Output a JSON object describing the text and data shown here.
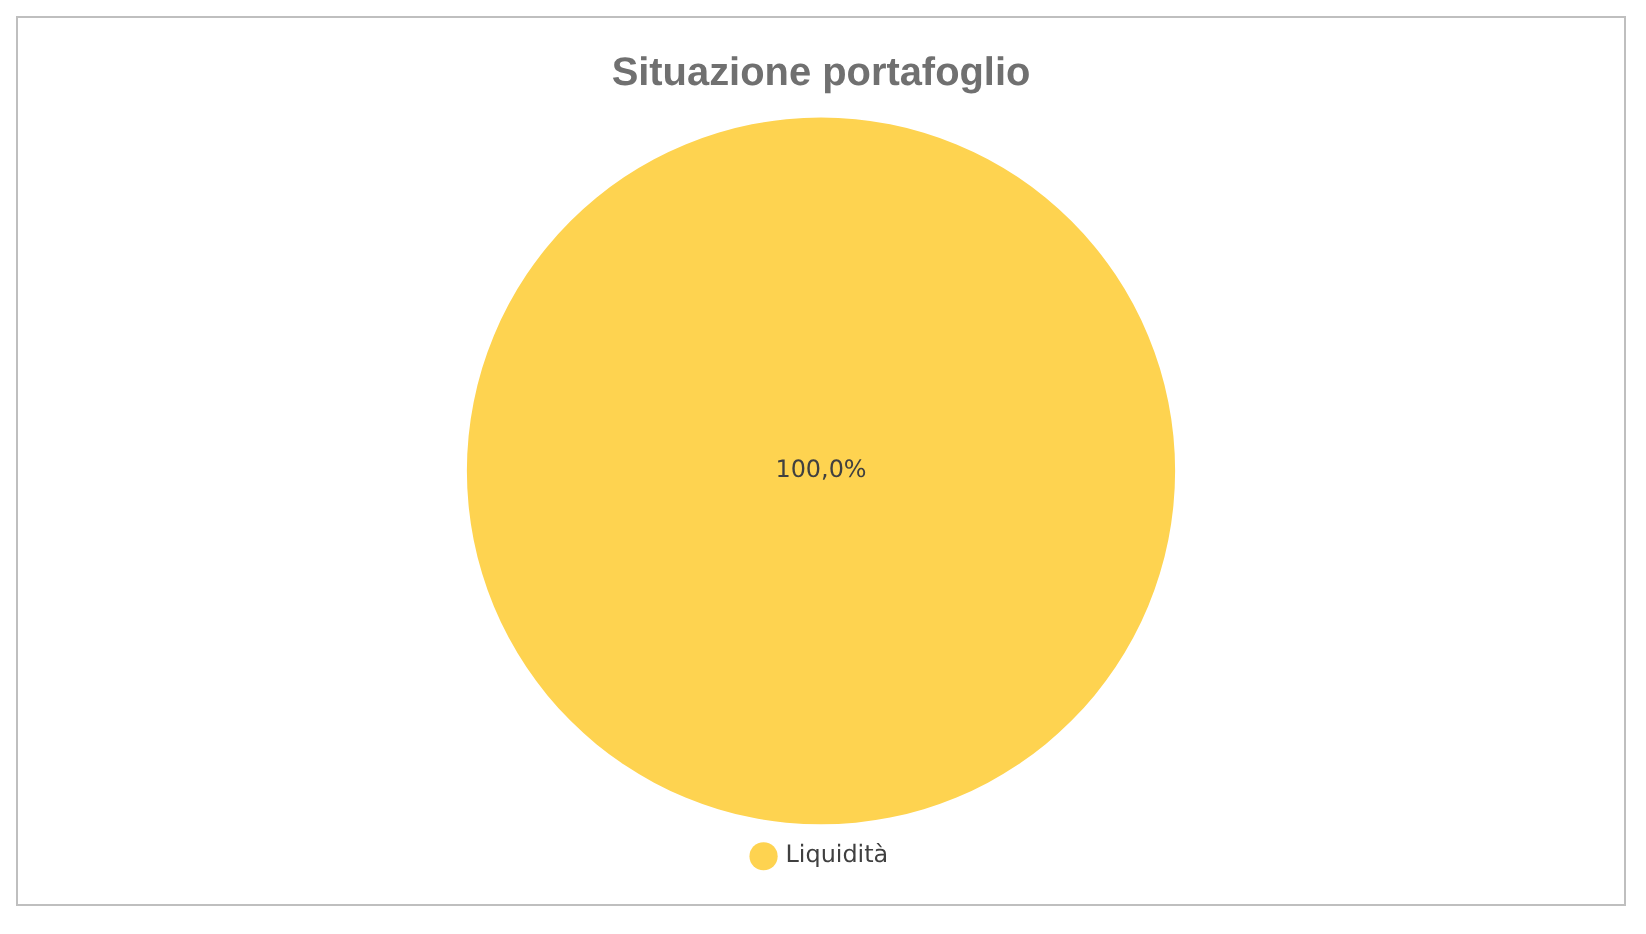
{
  "chart_data": {
    "type": "pie",
    "title": "Situazione portafoglio",
    "categories": [
      "Liquidità"
    ],
    "values": [
      100
    ],
    "colors": [
      "#fed350"
    ],
    "value_labels": [
      "100,0%"
    ],
    "legend": "bottom"
  }
}
